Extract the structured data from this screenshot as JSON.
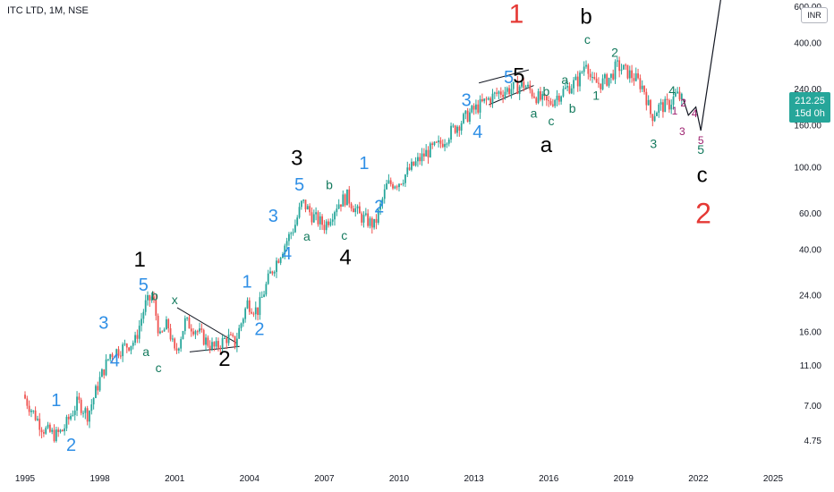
{
  "symbol": {
    "title": "ITC LTD, 1M, NSE",
    "currency": "INR"
  },
  "price_tag": {
    "price": "212.25",
    "countdown": "15d 0h"
  },
  "colors": {
    "up": "#26a69a",
    "down": "#ef5350",
    "blue_labels": "#2f8fe6",
    "green_labels": "#147a5e",
    "black_labels": "#000000",
    "red_labels": "#e53935",
    "purple_labels": "#9c1f6e"
  },
  "chart_data": {
    "type": "candlestick",
    "y_scale": "log",
    "ylim": [
      4.2,
      650
    ],
    "xlim": [
      1994.9,
      2026.0
    ],
    "grid": false,
    "y_ticks": [
      "600.00",
      "400.00",
      "240.00",
      "160.00",
      "100.00",
      "60.00",
      "40.00",
      "24.00",
      "16.00",
      "11.00",
      "7.00",
      "4.75"
    ],
    "x_ticks": [
      "1995",
      "1998",
      "2001",
      "2004",
      "2007",
      "2010",
      "2013",
      "2016",
      "2019",
      "2022",
      "2025"
    ],
    "price_path": [
      [
        1994.8,
        8.7
      ],
      [
        1995.3,
        6.8
      ],
      [
        1995.8,
        5.4
      ],
      [
        1996.3,
        5.0
      ],
      [
        1996.6,
        5.3
      ],
      [
        1997.2,
        7.3
      ],
      [
        1997.6,
        6.3
      ],
      [
        1998.1,
        9.5
      ],
      [
        1998.5,
        12.4
      ],
      [
        1999.1,
        13.5
      ],
      [
        1999.5,
        14.4
      ],
      [
        1999.9,
        21.5
      ],
      [
        2000.2,
        23.6
      ],
      [
        2000.5,
        14.8
      ],
      [
        2000.8,
        17.5
      ],
      [
        2001.1,
        12.3
      ],
      [
        2001.5,
        17.8
      ],
      [
        2001.9,
        16.5
      ],
      [
        2002.3,
        14.5
      ],
      [
        2002.7,
        13.2
      ],
      [
        2003.2,
        15.0
      ],
      [
        2003.5,
        14.0
      ],
      [
        2004.0,
        22.0
      ],
      [
        2004.4,
        20.0
      ],
      [
        2004.9,
        30.0
      ],
      [
        2005.4,
        40.0
      ],
      [
        2005.9,
        52.0
      ],
      [
        2006.2,
        68.0
      ],
      [
        2006.6,
        58.0
      ],
      [
        2007.1,
        52.0
      ],
      [
        2007.6,
        66.0
      ],
      [
        2008.0,
        72.0
      ],
      [
        2008.5,
        58.0
      ],
      [
        2009.1,
        52.0
      ],
      [
        2009.6,
        82.0
      ],
      [
        2010.1,
        85.0
      ],
      [
        2010.6,
        100.0
      ],
      [
        2011.2,
        118.0
      ],
      [
        2011.7,
        128.0
      ],
      [
        2012.2,
        150.0
      ],
      [
        2012.7,
        172.0
      ],
      [
        2013.1,
        190.0
      ],
      [
        2013.6,
        210.0
      ],
      [
        2014.1,
        230.0
      ],
      [
        2014.6,
        240.0
      ],
      [
        2015.1,
        250.0
      ],
      [
        2015.4,
        230.0
      ],
      [
        2015.8,
        210.0
      ],
      [
        2016.1,
        202.0
      ],
      [
        2016.4,
        220.0
      ],
      [
        2016.9,
        245.0
      ],
      [
        2017.3,
        265.0
      ],
      [
        2017.6,
        335.0
      ],
      [
        2017.8,
        255.0
      ],
      [
        2018.2,
        255.0
      ],
      [
        2018.6,
        275.0
      ],
      [
        2018.8,
        310.0
      ],
      [
        2019.2,
        290.0
      ],
      [
        2019.6,
        265.0
      ],
      [
        2019.9,
        240.0
      ],
      [
        2020.2,
        175.0
      ],
      [
        2020.5,
        195.0
      ],
      [
        2020.9,
        200.0
      ],
      [
        2021.2,
        225.0
      ],
      [
        2021.4,
        212.0
      ]
    ],
    "projection_path": [
      [
        2021.4,
        212.0
      ],
      [
        2021.6,
        178.0
      ],
      [
        2021.9,
        195.0
      ],
      [
        2022.1,
        150.0
      ],
      [
        2022.9,
        650.0
      ]
    ],
    "trendlines": [
      {
        "from": [
          2013.2,
          255
        ],
        "to": [
          2015.2,
          295
        ]
      },
      {
        "from": [
          2013.6,
          200
        ],
        "to": [
          2015.4,
          248
        ]
      },
      {
        "from": [
          2001.1,
          20.8
        ],
        "to": [
          2003.5,
          14.0
        ]
      },
      {
        "from": [
          2001.6,
          12.7
        ],
        "to": [
          2003.6,
          13.5
        ]
      }
    ],
    "wave_labels": [
      {
        "text": "1",
        "t": 1996.25,
        "p": 7.3,
        "color": "blue",
        "size": 20
      },
      {
        "text": "2",
        "t": 1996.85,
        "p": 4.45,
        "color": "blue",
        "size": 20
      },
      {
        "text": "3",
        "t": 1998.15,
        "p": 17.3,
        "color": "blue",
        "size": 20
      },
      {
        "text": "4",
        "t": 1998.6,
        "p": 11.4,
        "color": "blue",
        "size": 20
      },
      {
        "text": "5",
        "t": 1999.75,
        "p": 26.5,
        "color": "blue",
        "size": 20
      },
      {
        "text": "1",
        "t": 1999.6,
        "p": 35.0,
        "color": "black",
        "size": 24
      },
      {
        "text": "a",
        "t": 1999.85,
        "p": 12.6,
        "color": "green",
        "size": 14
      },
      {
        "text": "b",
        "t": 2000.2,
        "p": 23.5,
        "color": "green",
        "size": 14
      },
      {
        "text": "c",
        "t": 2000.35,
        "p": 10.5,
        "color": "green",
        "size": 14
      },
      {
        "text": "x",
        "t": 2001.0,
        "p": 22.5,
        "color": "green",
        "size": 14
      },
      {
        "text": "2",
        "t": 2003.0,
        "p": 11.6,
        "color": "black",
        "size": 24
      },
      {
        "text": "1",
        "t": 2003.9,
        "p": 27.5,
        "color": "blue",
        "size": 20
      },
      {
        "text": "2",
        "t": 2004.4,
        "p": 16.2,
        "color": "blue",
        "size": 20
      },
      {
        "text": "3",
        "t": 2004.95,
        "p": 57.0,
        "color": "blue",
        "size": 20
      },
      {
        "text": "4",
        "t": 2005.5,
        "p": 37.5,
        "color": "blue",
        "size": 20
      },
      {
        "text": "5",
        "t": 2006.0,
        "p": 81.0,
        "color": "blue",
        "size": 20
      },
      {
        "text": "3",
        "t": 2005.9,
        "p": 109.0,
        "color": "black",
        "size": 24
      },
      {
        "text": "a",
        "t": 2006.3,
        "p": 45.5,
        "color": "green",
        "size": 14
      },
      {
        "text": "b",
        "t": 2007.2,
        "p": 81.0,
        "color": "green",
        "size": 14
      },
      {
        "text": "c",
        "t": 2007.8,
        "p": 46.0,
        "color": "green",
        "size": 14
      },
      {
        "text": "4",
        "t": 2007.85,
        "p": 36.0,
        "color": "black",
        "size": 24
      },
      {
        "text": "1",
        "t": 2008.6,
        "p": 103.0,
        "color": "blue",
        "size": 20
      },
      {
        "text": "2",
        "t": 2009.2,
        "p": 63.5,
        "color": "blue",
        "size": 20
      },
      {
        "text": "3",
        "t": 2012.7,
        "p": 208.0,
        "color": "blue",
        "size": 20
      },
      {
        "text": "4",
        "t": 2013.15,
        "p": 146.0,
        "color": "blue",
        "size": 20
      },
      {
        "text": "5",
        "t": 2014.4,
        "p": 268.0,
        "color": "blue",
        "size": 20
      },
      {
        "text": "5",
        "t": 2014.8,
        "p": 272.0,
        "color": "black",
        "size": 24
      },
      {
        "text": "1",
        "t": 2014.7,
        "p": 540.0,
        "color": "red",
        "size": 30
      },
      {
        "text": "a",
        "t": 2015.4,
        "p": 180.0,
        "color": "green",
        "size": 14
      },
      {
        "text": "b",
        "t": 2015.9,
        "p": 230.0,
        "color": "green",
        "size": 14
      },
      {
        "text": "c",
        "t": 2016.1,
        "p": 165.0,
        "color": "green",
        "size": 14
      },
      {
        "text": "a",
        "t": 2015.9,
        "p": 126.0,
        "color": "black",
        "size": 24
      },
      {
        "text": "a",
        "t": 2016.65,
        "p": 262.0,
        "color": "green",
        "size": 14
      },
      {
        "text": "b",
        "t": 2016.95,
        "p": 190.0,
        "color": "green",
        "size": 14
      },
      {
        "text": "c",
        "t": 2017.55,
        "p": 410.0,
        "color": "green",
        "size": 14
      },
      {
        "text": "b",
        "t": 2017.5,
        "p": 525.0,
        "color": "black",
        "size": 24
      },
      {
        "text": "1",
        "t": 2017.9,
        "p": 220.0,
        "color": "green",
        "size": 14
      },
      {
        "text": "2",
        "t": 2018.65,
        "p": 355.0,
        "color": "green",
        "size": 14
      },
      {
        "text": "3",
        "t": 2020.2,
        "p": 128.0,
        "color": "green",
        "size": 14
      },
      {
        "text": "4",
        "t": 2020.95,
        "p": 232.0,
        "color": "green",
        "size": 14
      },
      {
        "text": "1",
        "t": 2021.05,
        "p": 185.0,
        "color": "purple",
        "size": 12
      },
      {
        "text": "2",
        "t": 2021.4,
        "p": 203.0,
        "color": "purple",
        "size": 12
      },
      {
        "text": "3",
        "t": 2021.35,
        "p": 147.0,
        "color": "purple",
        "size": 12
      },
      {
        "text": "4",
        "t": 2021.85,
        "p": 180.0,
        "color": "purple",
        "size": 12
      },
      {
        "text": "5",
        "t": 2022.1,
        "p": 133.0,
        "color": "purple",
        "size": 12
      },
      {
        "text": "5",
        "t": 2022.1,
        "p": 120.0,
        "color": "green",
        "size": 14
      },
      {
        "text": "c",
        "t": 2022.15,
        "p": 90.0,
        "color": "black",
        "size": 24
      },
      {
        "text": "2",
        "t": 2022.2,
        "p": 58.0,
        "color": "red",
        "size": 32
      }
    ]
  }
}
